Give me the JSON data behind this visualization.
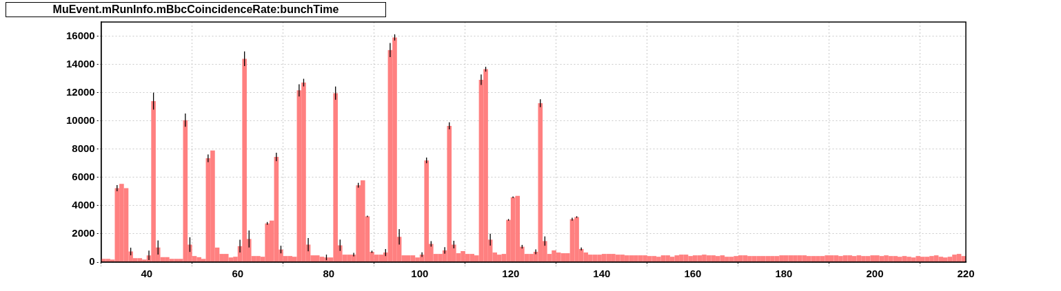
{
  "chart_data": {
    "type": "histogram",
    "title": "MuEvent.mRunInfo.mBbcCoincidenceRate:bunchTime",
    "bins": [
      30,
      31,
      32,
      33,
      34,
      35,
      36,
      37,
      38,
      39,
      40,
      41,
      42,
      43,
      44,
      45,
      46,
      47,
      48,
      49,
      50,
      51,
      52,
      53,
      54,
      55,
      56,
      57,
      58,
      59,
      60,
      61,
      62,
      63,
      64,
      65,
      66,
      67,
      68,
      69,
      70,
      71,
      72,
      73,
      74,
      75,
      76,
      77,
      78,
      79,
      80,
      81,
      82,
      83,
      84,
      85,
      86,
      87,
      88,
      89,
      90,
      91,
      92,
      93,
      94,
      95,
      96,
      97,
      98,
      99,
      100,
      101,
      102,
      103,
      104,
      105,
      106,
      107,
      108,
      109,
      110,
      111,
      112,
      113,
      114,
      115,
      116,
      117,
      118,
      119,
      120,
      121,
      122,
      123,
      124,
      125,
      126,
      127,
      128,
      129,
      130,
      131,
      132,
      133,
      134,
      135,
      136,
      137,
      138,
      139,
      140,
      141,
      142,
      143,
      144,
      145,
      146,
      147,
      148,
      149,
      150,
      151,
      152,
      153,
      154,
      155,
      156,
      157,
      158,
      159,
      160,
      161,
      162,
      163,
      164,
      165,
      166,
      167,
      168,
      169,
      170,
      171,
      172,
      173,
      174,
      175,
      176,
      177,
      178,
      179,
      180,
      181,
      182,
      183,
      184,
      185,
      186,
      187,
      188,
      189,
      190,
      191,
      192,
      193,
      194,
      195,
      196,
      197,
      198,
      199,
      200,
      201,
      202,
      203,
      204,
      205,
      206,
      207,
      208,
      209,
      210,
      211,
      212,
      213,
      214,
      215,
      216,
      217,
      218,
      219,
      220
    ],
    "values": [
      230,
      230,
      180,
      5240,
      5540,
      5240,
      750,
      280,
      280,
      180,
      480,
      11400,
      1030,
      350,
      350,
      230,
      230,
      230,
      10050,
      1240,
      430,
      350,
      230,
      7350,
      7900,
      1030,
      580,
      580,
      330,
      380,
      1130,
      14400,
      1640,
      430,
      430,
      380,
      2740,
      2940,
      7450,
      890,
      430,
      430,
      380,
      12160,
      12710,
      1240,
      480,
      480,
      380,
      330,
      330,
      11960,
      1190,
      530,
      530,
      530,
      5440,
      5790,
      3240,
      730,
      530,
      530,
      680,
      15010,
      15910,
      1790,
      480,
      480,
      480,
      330,
      530,
      7200,
      1290,
      580,
      580,
      830,
      9650,
      1240,
      630,
      780,
      580,
      580,
      480,
      12910,
      13660,
      1590,
      680,
      530,
      580,
      2990,
      4590,
      4690,
      1090,
      580,
      580,
      730,
      11250,
      1490,
      580,
      830,
      680,
      630,
      630,
      3040,
      3190,
      930,
      680,
      530,
      530,
      530,
      580,
      580,
      580,
      530,
      530,
      480,
      480,
      480,
      480,
      480,
      430,
      430,
      380,
      480,
      480,
      380,
      480,
      530,
      530,
      430,
      480,
      480,
      530,
      480,
      480,
      430,
      480,
      380,
      380,
      430,
      480,
      480,
      430,
      430,
      430,
      430,
      430,
      430,
      430,
      480,
      480,
      480,
      480,
      480,
      480,
      430,
      430,
      430,
      430,
      480,
      480,
      480,
      430,
      480,
      480,
      430,
      480,
      430,
      430,
      480,
      480,
      430,
      480,
      430,
      430,
      380,
      430,
      380,
      330,
      430,
      380,
      380,
      430,
      480,
      380,
      330,
      380,
      530,
      580,
      430
    ],
    "errors": [
      null,
      null,
      null,
      220,
      null,
      null,
      270,
      null,
      null,
      null,
      330,
      600,
      500,
      null,
      null,
      null,
      null,
      null,
      470,
      520,
      null,
      null,
      null,
      270,
      null,
      null,
      null,
      null,
      null,
      null,
      450,
      520,
      600,
      null,
      null,
      null,
      100,
      null,
      300,
      270,
      null,
      null,
      null,
      430,
      270,
      470,
      null,
      null,
      null,
      200,
      null,
      470,
      400,
      null,
      null,
      130,
      170,
      null,
      50,
      80,
      null,
      null,
      250,
      500,
      220,
      550,
      null,
      null,
      null,
      null,
      170,
      200,
      200,
      null,
      null,
      230,
      250,
      270,
      null,
      null,
      null,
      null,
      null,
      370,
      170,
      420,
      null,
      null,
      null,
      60,
      60,
      null,
      130,
      null,
      null,
      170,
      280,
      330,
      null,
      null,
      null,
      null,
      null,
      100,
      60,
      100,
      null,
      null,
      null,
      null,
      null,
      null,
      null,
      null,
      null,
      null,
      null,
      null,
      null,
      null,
      null,
      null,
      null,
      null,
      null,
      null,
      null,
      null,
      null,
      null,
      null,
      null,
      null,
      null,
      null,
      null,
      null,
      null,
      null,
      null,
      null,
      null,
      null,
      null,
      null,
      null,
      null,
      null,
      null,
      null,
      null,
      null,
      null,
      null,
      null,
      null,
      null,
      null,
      null,
      null,
      null,
      null,
      null,
      null,
      null,
      null,
      null,
      null,
      null,
      null,
      null,
      null,
      null,
      null,
      null,
      null,
      null,
      null,
      null,
      null,
      null,
      null,
      null,
      null,
      null,
      null,
      null,
      null,
      null,
      null
    ],
    "color": "#ff8080",
    "xlim": [
      30,
      220
    ],
    "xticks": [
      40,
      60,
      80,
      100,
      120,
      140,
      160,
      180,
      200,
      220
    ],
    "ylim": [
      0,
      17000
    ],
    "yticks": [
      0,
      2000,
      4000,
      6000,
      8000,
      10000,
      12000,
      14000,
      16000
    ],
    "grid": true,
    "legend": false
  }
}
